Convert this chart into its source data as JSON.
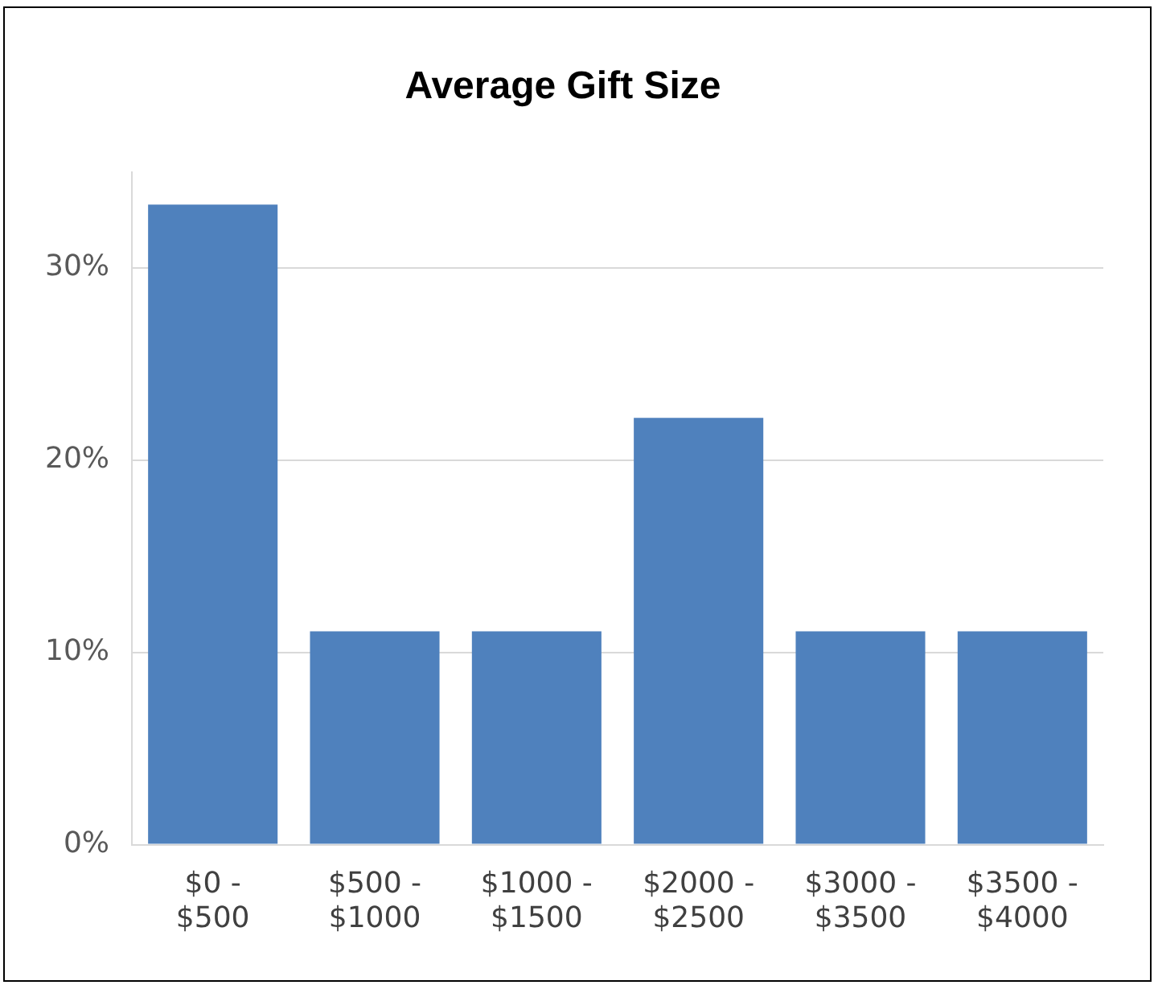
{
  "chart_data": {
    "type": "bar",
    "title": "Average Gift Size",
    "categories": [
      "$0 - $500",
      "$500 - $1000",
      "$1000 - $1500",
      "$2000 - $2500",
      "$3000 - $3500",
      "$3500 - $4000"
    ],
    "values": [
      33.3,
      11.1,
      11.1,
      22.2,
      11.1,
      11.1
    ],
    "color": "#4f81bd",
    "yticks": [
      {
        "value": 0,
        "label": "0%"
      },
      {
        "value": 10,
        "label": "10%"
      },
      {
        "value": 20,
        "label": "20%"
      },
      {
        "value": 30,
        "label": "30%"
      }
    ],
    "ylim": [
      0,
      35
    ],
    "grid": "y",
    "legend": false
  }
}
